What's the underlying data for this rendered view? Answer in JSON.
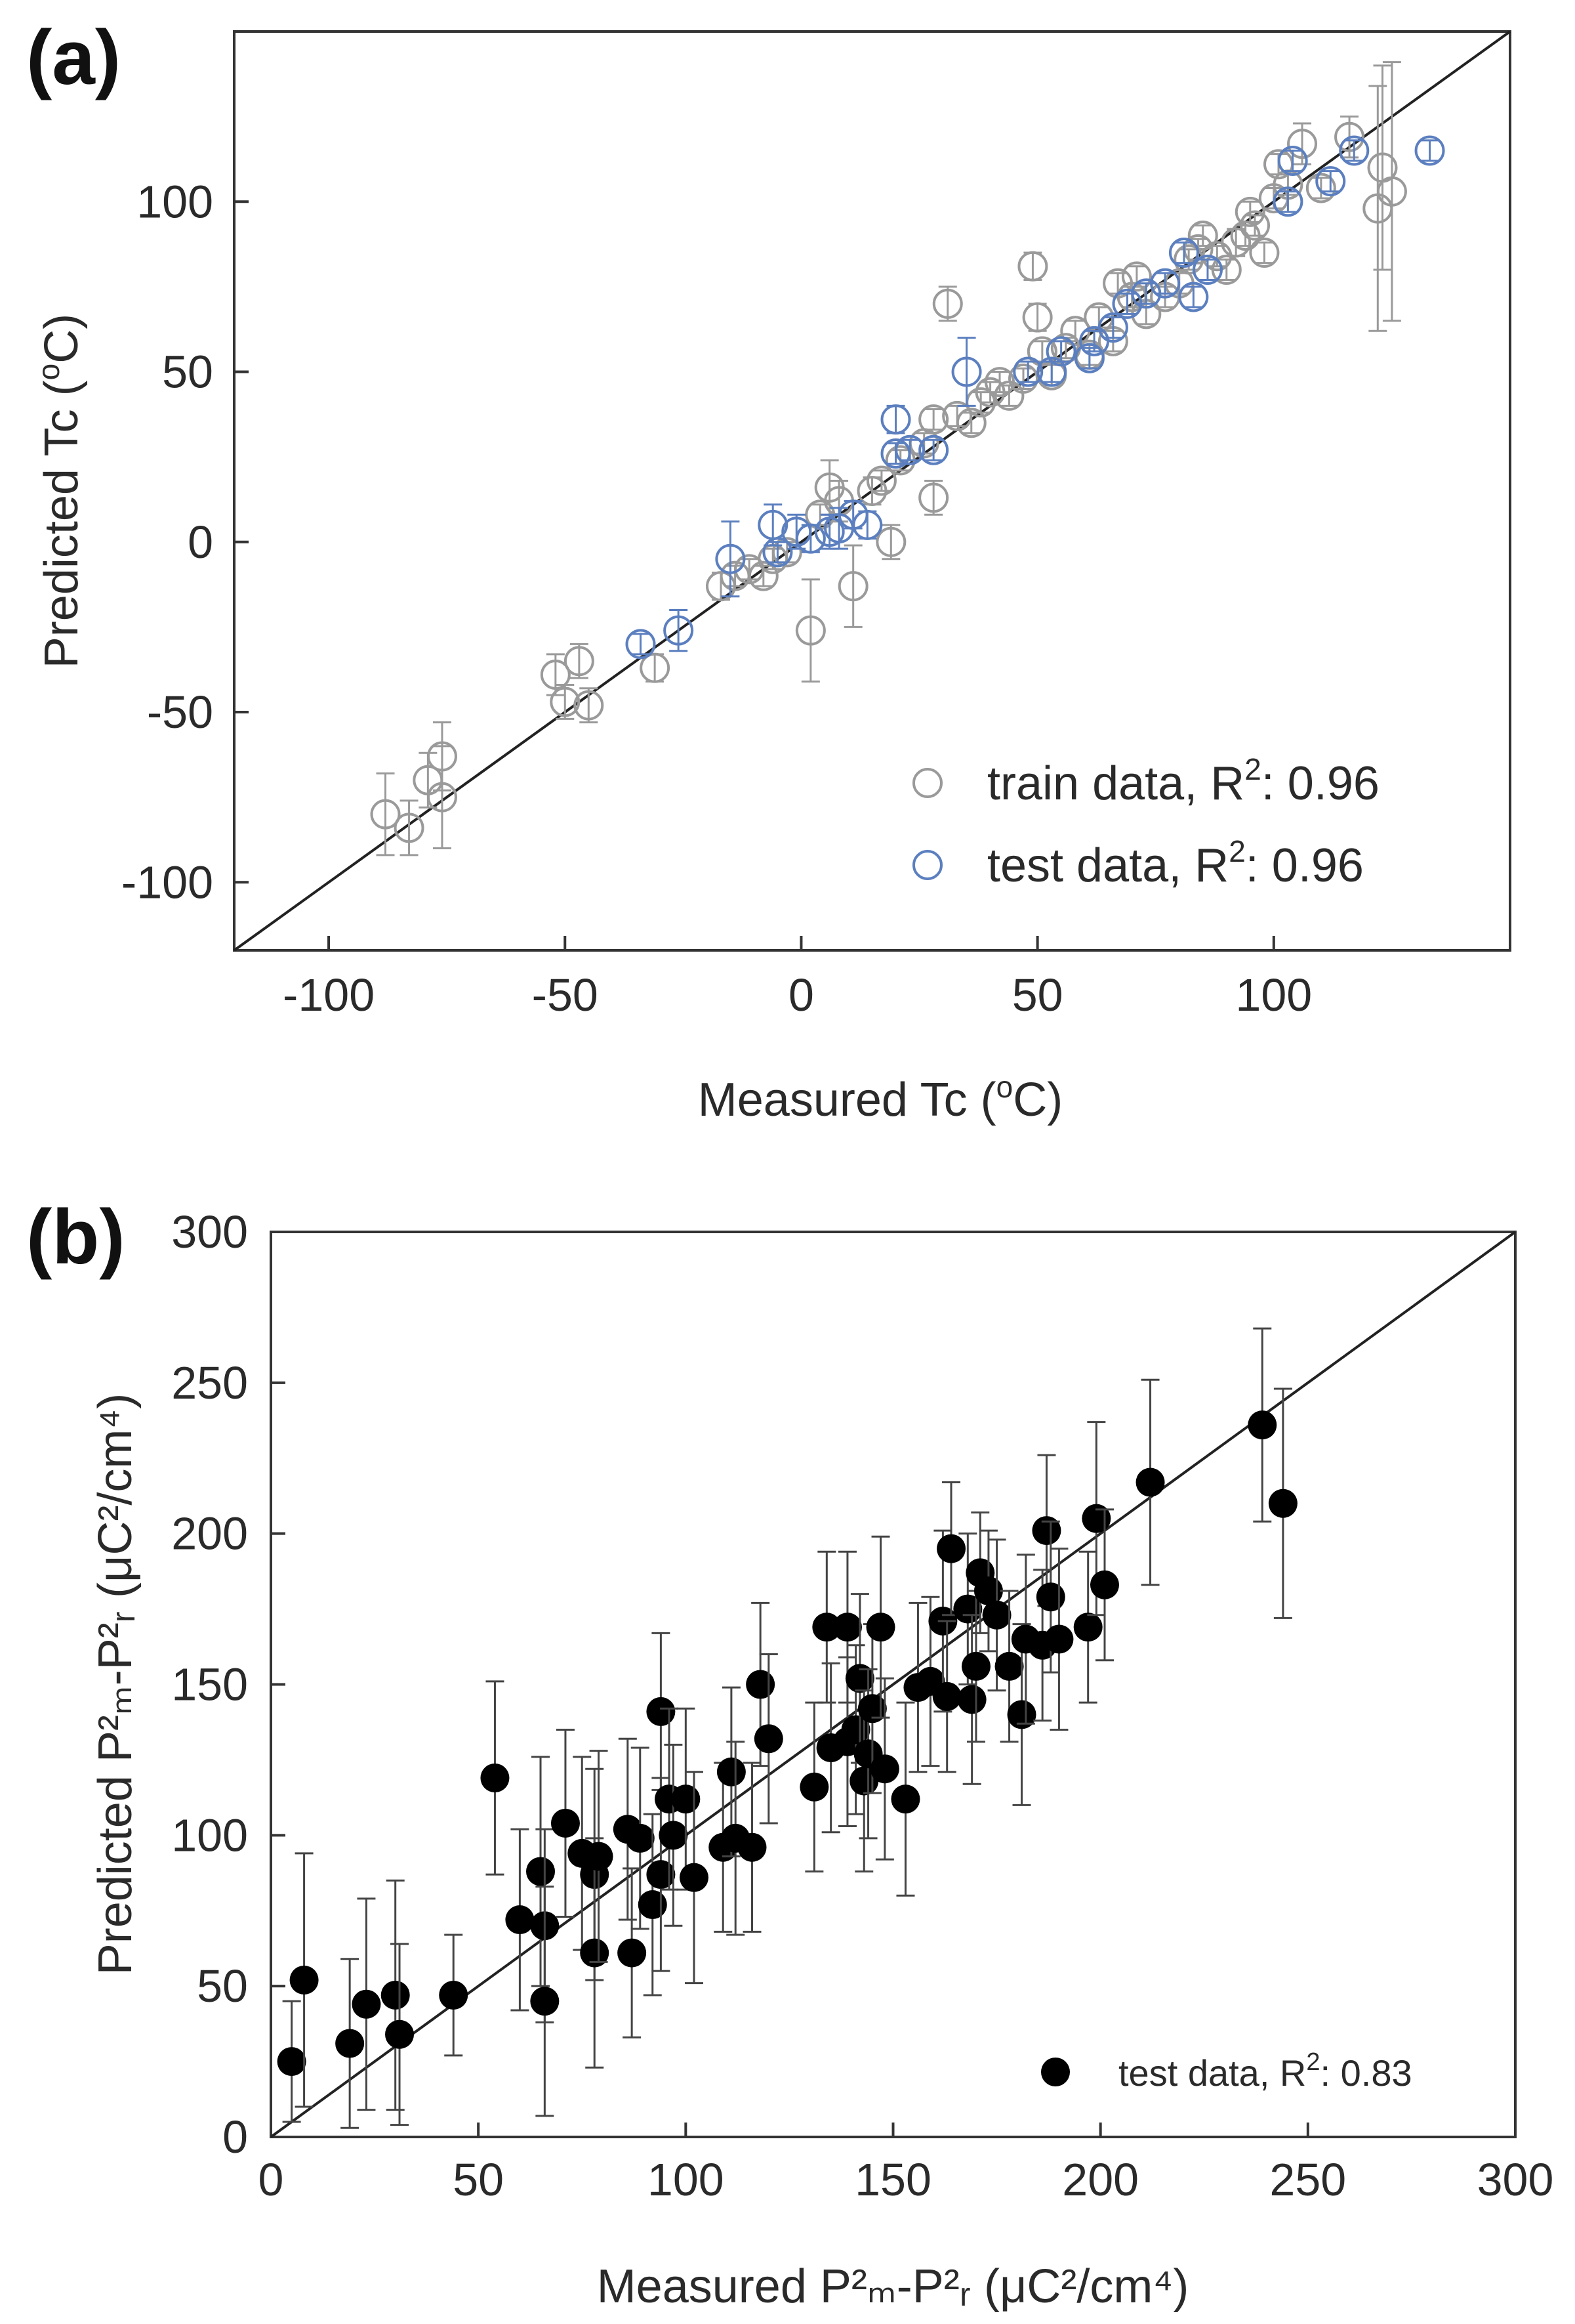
{
  "chart_data": [
    {
      "type": "scatter",
      "panel_label": "(a)",
      "xlabel_main": "Measured Tc (",
      "xlabel_sup": "o",
      "xlabel_tail": "C)",
      "ylabel_main": "Predicted Tc (",
      "ylabel_sup": "o",
      "ylabel_tail": "C)",
      "xlim": [
        -120,
        150
      ],
      "ylim": [
        -120,
        150
      ],
      "xticks": [
        -100,
        -50,
        0,
        50,
        100
      ],
      "yticks": [
        -100,
        -50,
        0,
        50,
        100
      ],
      "xtick_labels": [
        "-100",
        "-50",
        "0",
        "50",
        "100"
      ],
      "ytick_labels": [
        "-100",
        "-50",
        "0",
        "50",
        "100"
      ],
      "diagonal": "y = x",
      "legend_position": "bottom-right",
      "series": [
        {
          "name": "train data",
          "legend_prefix": "train data, R",
          "legend_sup": "2",
          "legend_value": ": 0.96",
          "color": "#9a9a9a",
          "marker": "open-circle",
          "points": [
            [
              -88,
              -80,
              12
            ],
            [
              -83,
              -84,
              8
            ],
            [
              -79,
              -70,
              8
            ],
            [
              -76,
              -63,
              10
            ],
            [
              -76,
              -75,
              15
            ],
            [
              -52,
              -39,
              6
            ],
            [
              -50,
              -47,
              5
            ],
            [
              -47,
              -35,
              5
            ],
            [
              -45,
              -48,
              5
            ],
            [
              -31,
              -37,
              4
            ],
            [
              -17,
              -13,
              4
            ],
            [
              -14,
              -10,
              3
            ],
            [
              -11,
              -8,
              3
            ],
            [
              -8,
              -10,
              3
            ],
            [
              -6,
              -5,
              3
            ],
            [
              -3,
              -3,
              3
            ],
            [
              2,
              -26,
              15
            ],
            [
              4,
              8,
              3
            ],
            [
              6,
              16,
              8
            ],
            [
              8,
              12,
              6
            ],
            [
              11,
              -13,
              12
            ],
            [
              15,
              15,
              4
            ],
            [
              17,
              18,
              3
            ],
            [
              19,
              0,
              5
            ],
            [
              21,
              24,
              3
            ],
            [
              26,
              29,
              3
            ],
            [
              28,
              13,
              5
            ],
            [
              28,
              36,
              3
            ],
            [
              31,
              70,
              5
            ],
            [
              33,
              37,
              3
            ],
            [
              36,
              35,
              3
            ],
            [
              38,
              41,
              3
            ],
            [
              40,
              44,
              3
            ],
            [
              42,
              47,
              3
            ],
            [
              44,
              43,
              3
            ],
            [
              47,
              48,
              3
            ],
            [
              49,
              81,
              4
            ],
            [
              50,
              66,
              4
            ],
            [
              51,
              56,
              3
            ],
            [
              53,
              49,
              3
            ],
            [
              56,
              57,
              3
            ],
            [
              58,
              62,
              3
            ],
            [
              61,
              55,
              3
            ],
            [
              63,
              66,
              3
            ],
            [
              66,
              59,
              3
            ],
            [
              67,
              76,
              3
            ],
            [
              70,
              72,
              3
            ],
            [
              71,
              78,
              3
            ],
            [
              73,
              67,
              3
            ],
            [
              77,
              72,
              3
            ],
            [
              80,
              76,
              3
            ],
            [
              82,
              83,
              3
            ],
            [
              84,
              86,
              3
            ],
            [
              85,
              90,
              3
            ],
            [
              88,
              84,
              3
            ],
            [
              90,
              80,
              3
            ],
            [
              92,
              88,
              4
            ],
            [
              94,
              90,
              3
            ],
            [
              95,
              97,
              3
            ],
            [
              96,
              93,
              3
            ],
            [
              98,
              85,
              3
            ],
            [
              100,
              101,
              3
            ],
            [
              101,
              111,
              3
            ],
            [
              103,
              105,
              3
            ],
            [
              106,
              117,
              6
            ],
            [
              110,
              104,
              3
            ],
            [
              116,
              119,
              6
            ],
            [
              122,
              98,
              36
            ],
            [
              123,
              110,
              30
            ],
            [
              125,
              103,
              38
            ]
          ]
        },
        {
          "name": "test data",
          "legend_prefix": "test data, R",
          "legend_sup": "2",
          "legend_value": ": 0.96",
          "color": "#5b7fbf",
          "marker": "open-circle",
          "points": [
            [
              -34,
              -30,
              3
            ],
            [
              -26,
              -26,
              6
            ],
            [
              -15,
              -5,
              11
            ],
            [
              -6,
              5,
              6
            ],
            [
              -5,
              -3,
              3
            ],
            [
              -1,
              3,
              5
            ],
            [
              2,
              1,
              4
            ],
            [
              6,
              3,
              5
            ],
            [
              8,
              4,
              6
            ],
            [
              11,
              8,
              4
            ],
            [
              14,
              5,
              4
            ],
            [
              20,
              36,
              4
            ],
            [
              20,
              26,
              3
            ],
            [
              23,
              27,
              3
            ],
            [
              28,
              27,
              3
            ],
            [
              35,
              50,
              10
            ],
            [
              48,
              50,
              3
            ],
            [
              53,
              50,
              3
            ],
            [
              55,
              56,
              3
            ],
            [
              61,
              54,
              3
            ],
            [
              62,
              59,
              3
            ],
            [
              66,
              63,
              3
            ],
            [
              69,
              70,
              3
            ],
            [
              73,
              73,
              3
            ],
            [
              77,
              76,
              3
            ],
            [
              81,
              85,
              3
            ],
            [
              83,
              72,
              3
            ],
            [
              86,
              80,
              3
            ],
            [
              103,
              100,
              3
            ],
            [
              104,
              112,
              3
            ],
            [
              112,
              106,
              3
            ],
            [
              117,
              115,
              3
            ],
            [
              133,
              115,
              3
            ]
          ]
        }
      ]
    },
    {
      "type": "scatter",
      "panel_label": "(b)",
      "xlabel": "Measured P²ₘ-P²ᵣ (μC²/cm⁴)",
      "ylabel": "Predicted P²ₘ-P²ᵣ (μC²/cm⁴)",
      "xlim": [
        0,
        300
      ],
      "ylim": [
        0,
        300
      ],
      "xticks": [
        0,
        50,
        100,
        150,
        200,
        250,
        300
      ],
      "yticks": [
        0,
        50,
        100,
        150,
        200,
        250,
        300
      ],
      "xtick_labels": [
        "0",
        "50",
        "100",
        "150",
        "200",
        "250",
        "300"
      ],
      "ytick_labels": [
        "0",
        "50",
        "100",
        "150",
        "200",
        "250",
        "300"
      ],
      "diagonal": "y = x",
      "legend_position": "bottom-right",
      "series": [
        {
          "name": "test data",
          "legend_prefix": "test data, R",
          "legend_sup": "2",
          "legend_value": ": 0.83",
          "color": "#000000",
          "marker": "filled-circle",
          "points": [
            [
              5,
              25,
              20
            ],
            [
              8,
              52,
              42
            ],
            [
              19,
              31,
              28
            ],
            [
              23,
              44,
              35
            ],
            [
              30,
              47,
              38
            ],
            [
              31,
              34,
              30
            ],
            [
              44,
              47,
              20
            ],
            [
              54,
              119,
              32
            ],
            [
              60,
              72,
              30
            ],
            [
              65,
              88,
              38
            ],
            [
              66,
              70,
              32
            ],
            [
              66,
              45,
              38
            ],
            [
              71,
              104,
              31
            ],
            [
              75,
              94,
              32
            ],
            [
              78,
              87,
              35
            ],
            [
              78,
              61,
              38
            ],
            [
              79,
              93,
              35
            ],
            [
              86,
              102,
              30
            ],
            [
              87,
              61,
              28
            ],
            [
              89,
              99,
              30
            ],
            [
              92,
              77,
              30
            ],
            [
              94,
              87,
              32
            ],
            [
              94,
              141,
              26
            ],
            [
              96,
              112,
              30
            ],
            [
              97,
              100,
              30
            ],
            [
              100,
              112,
              30
            ],
            [
              102,
              86,
              35
            ],
            [
              109,
              96,
              28
            ],
            [
              111,
              121,
              28
            ],
            [
              112,
              99,
              32
            ],
            [
              116,
              96,
              28
            ],
            [
              118,
              150,
              27
            ],
            [
              120,
              132,
              28
            ],
            [
              131,
              116,
              28
            ],
            [
              134,
              169,
              25
            ],
            [
              135,
              129,
              28
            ],
            [
              139,
              169,
              25
            ],
            [
              139,
              131,
              28
            ],
            [
              141,
              135,
              28
            ],
            [
              142,
              152,
              28
            ],
            [
              143,
              118,
              30
            ],
            [
              144,
              127,
              28
            ],
            [
              145,
              142,
              28
            ],
            [
              147,
              169,
              30
            ],
            [
              148,
              122,
              30
            ],
            [
              153,
              112,
              32
            ],
            [
              156,
              149,
              28
            ],
            [
              159,
              151,
              28
            ],
            [
              162,
              171,
              30
            ],
            [
              163,
              146,
              25
            ],
            [
              164,
              195,
              22
            ],
            [
              168,
              175,
              25
            ],
            [
              169,
              145,
              28
            ],
            [
              170,
              156,
              25
            ],
            [
              171,
              187,
              20
            ],
            [
              173,
              181,
              20
            ],
            [
              175,
              173,
              25
            ],
            [
              178,
              156,
              25
            ],
            [
              181,
              140,
              30
            ],
            [
              182,
              165,
              28
            ],
            [
              186,
              163,
              25
            ],
            [
              187,
              201,
              25
            ],
            [
              188,
              179,
              25
            ],
            [
              190,
              165,
              30
            ],
            [
              197,
              169,
              25
            ],
            [
              199,
              205,
              32
            ],
            [
              201,
              183,
              25
            ],
            [
              212,
              217,
              34
            ],
            [
              239,
              236,
              32
            ],
            [
              244,
              210,
              38
            ]
          ]
        }
      ]
    }
  ]
}
